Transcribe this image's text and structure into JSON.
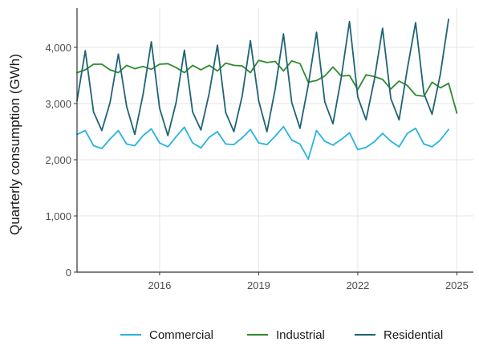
{
  "chart_data": {
    "type": "line",
    "title": "",
    "xlabel": "",
    "ylabel": "Quarterly consumption (GWh)",
    "xlim": [
      2013.5,
      2025.5
    ],
    "ylim": [
      0,
      4700
    ],
    "x_ticks": [
      2016,
      2019,
      2022,
      2025
    ],
    "y_ticks": [
      0,
      1000,
      2000,
      3000,
      4000
    ],
    "x_tick_labels": [
      "2016",
      "2019",
      "2022",
      "2025"
    ],
    "y_tick_labels": [
      "0",
      "1,000",
      "2,000",
      "3,000",
      "4,000"
    ],
    "grid": true,
    "legend_position": "bottom",
    "x_start": 2013.5,
    "x_step": 0.25,
    "series": [
      {
        "name": "Commercial",
        "color": "#29b3e0",
        "values": [
          2450,
          2520,
          2250,
          2200,
          2370,
          2520,
          2280,
          2250,
          2430,
          2550,
          2300,
          2230,
          2410,
          2580,
          2300,
          2210,
          2400,
          2500,
          2280,
          2270,
          2390,
          2540,
          2300,
          2270,
          2420,
          2590,
          2350,
          2280,
          2010,
          2520,
          2330,
          2260,
          2360,
          2480,
          2180,
          2220,
          2320,
          2470,
          2330,
          2230,
          2470,
          2560,
          2280,
          2230,
          2350,
          2540
        ]
      },
      {
        "name": "Industrial",
        "color": "#2e8b2e",
        "values": [
          3550,
          3600,
          3700,
          3700,
          3600,
          3550,
          3680,
          3620,
          3660,
          3610,
          3700,
          3710,
          3640,
          3550,
          3680,
          3600,
          3680,
          3580,
          3720,
          3680,
          3670,
          3550,
          3770,
          3730,
          3750,
          3580,
          3760,
          3710,
          3380,
          3410,
          3490,
          3650,
          3490,
          3500,
          3250,
          3510,
          3480,
          3430,
          3260,
          3400,
          3320,
          3150,
          3130,
          3380,
          3280,
          3360,
          2830
        ]
      },
      {
        "name": "Residential",
        "color": "#1f6375",
        "values": [
          3050,
          3940,
          2850,
          2520,
          3020,
          3880,
          2950,
          2450,
          3160,
          4100,
          2920,
          2430,
          3020,
          3950,
          2850,
          2530,
          3180,
          4040,
          2840,
          2500,
          3130,
          4120,
          3050,
          2500,
          3260,
          4240,
          3020,
          2560,
          3330,
          4270,
          3030,
          2640,
          3460,
          4460,
          3120,
          2710,
          3420,
          4340,
          3090,
          2710,
          3620,
          4440,
          3180,
          2810,
          3520,
          4500
        ]
      }
    ]
  }
}
